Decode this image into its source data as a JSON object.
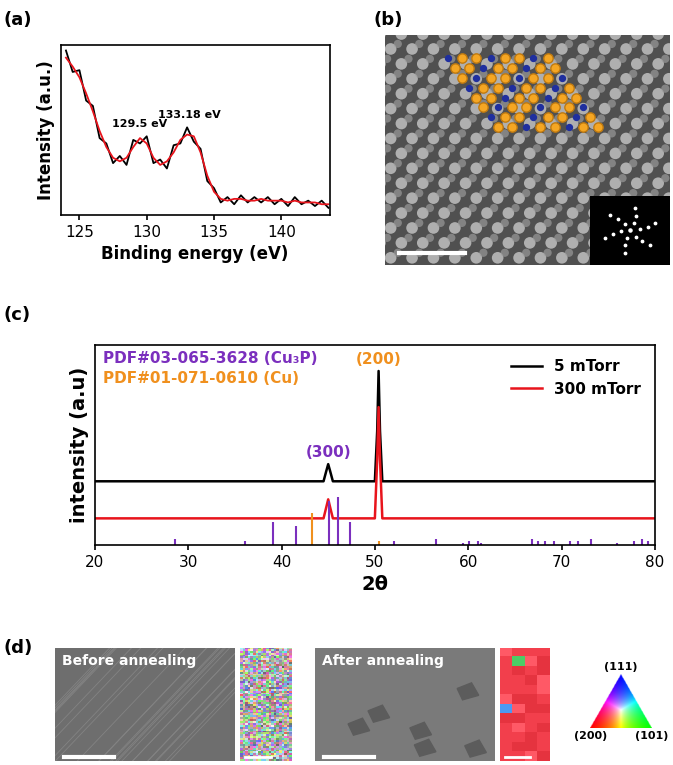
{
  "chart_data": [
    {
      "panel": "(a)",
      "type": "line",
      "x_label": "Binding energy (eV)",
      "y_label": "Intensity (a.u.)",
      "x": [
        124,
        124.5,
        125,
        125.5,
        126,
        126.5,
        127,
        127.5,
        128,
        128.5,
        129,
        129.5,
        130,
        130.5,
        131,
        131.5,
        132,
        132.5,
        133,
        133.5,
        134,
        134.5,
        135,
        135.5,
        136,
        136.5,
        137,
        137.5,
        138,
        138.5,
        139,
        139.5,
        140,
        140.5,
        141,
        141.5,
        142,
        142.5,
        143,
        143.5
      ],
      "series": [
        {
          "color": "#000000",
          "values": [
            1.02,
            0.9,
            0.91,
            0.74,
            0.71,
            0.53,
            0.5,
            0.39,
            0.43,
            0.38,
            0.52,
            0.5,
            0.54,
            0.39,
            0.41,
            0.36,
            0.49,
            0.5,
            0.59,
            0.51,
            0.47,
            0.29,
            0.25,
            0.17,
            0.2,
            0.16,
            0.21,
            0.17,
            0.2,
            0.17,
            0.2,
            0.16,
            0.19,
            0.15,
            0.2,
            0.16,
            0.18,
            0.15,
            0.18,
            0.14
          ]
        },
        {
          "color": "#e8141c",
          "values": [
            0.98,
            0.93,
            0.87,
            0.78,
            0.68,
            0.57,
            0.48,
            0.42,
            0.4,
            0.42,
            0.48,
            0.53,
            0.5,
            0.42,
            0.38,
            0.4,
            0.45,
            0.52,
            0.55,
            0.54,
            0.45,
            0.32,
            0.23,
            0.19,
            0.18,
            0.19,
            0.19,
            0.18,
            0.18,
            0.19,
            0.18,
            0.18,
            0.18,
            0.17,
            0.18,
            0.17,
            0.17,
            0.17,
            0.16,
            0.16
          ]
        }
      ],
      "xlim": [
        123.6,
        143.6
      ],
      "xticks": [
        125,
        130,
        135,
        140
      ],
      "ylim": [
        0.1,
        1.05
      ],
      "tick_labels": "x",
      "annotations": [
        {
          "text": "129.5 eV",
          "x": 129.5
        },
        {
          "text": "133.18 eV",
          "x": 133.18
        }
      ]
    },
    {
      "panel": "(c)",
      "type": "line",
      "x_label": "2θ",
      "y_label": "intensity (a.u)",
      "x": [
        20,
        44.5,
        44.8,
        45.0,
        45.2,
        45.5,
        50.0,
        50.25,
        50.4,
        50.55,
        50.8,
        80
      ],
      "series": [
        {
          "name": "5 mTorr",
          "color": "#000000",
          "values": [
            0.335,
            0.335,
            0.39,
            0.425,
            0.39,
            0.335,
            0.335,
            0.6,
            0.915,
            0.6,
            0.335,
            0.335
          ]
        },
        {
          "name": "300 mTorr",
          "color": "#e8141c",
          "values": [
            0.14,
            0.14,
            0.2,
            0.24,
            0.2,
            0.14,
            0.14,
            0.45,
            0.725,
            0.45,
            0.14,
            0.14
          ]
        }
      ],
      "reference_patterns": [
        {
          "name": "PDF#03-065-3628 (Cu₃P)",
          "color": "#7b2fbe",
          "x": [
            28.6,
            36.1,
            39.1,
            41.6,
            45.1,
            46.1,
            47.3,
            52.1,
            56.5,
            59.4,
            60.1,
            61.1,
            61.4,
            66.8,
            67.5,
            68.2,
            69.2,
            70.9,
            71.8,
            73.2,
            75.9,
            77.8,
            78.6,
            79.3
          ],
          "values": [
            0.03,
            0.02,
            0.12,
            0.1,
            0.23,
            0.25,
            0.12,
            0.02,
            0.03,
            0.01,
            0.02,
            0.02,
            0.01,
            0.03,
            0.02,
            0.02,
            0.02,
            0.02,
            0.02,
            0.03,
            0.01,
            0.02,
            0.03,
            0.02
          ]
        },
        {
          "name": "PDF#01-071-0610 (Cu)",
          "color": "#f0901e",
          "x": [
            43.3,
            50.4
          ],
          "values": [
            0.17,
            0.02
          ]
        }
      ],
      "peak_labels": [
        {
          "text": "(300)",
          "x": 45.0,
          "color": "#7b2fbe"
        },
        {
          "text": "(200)",
          "x": 50.4,
          "color": "#f0901e"
        }
      ],
      "xlim": [
        20,
        80
      ],
      "xticks": [
        20,
        30,
        40,
        50,
        60,
        70,
        80
      ],
      "ylim": [
        0,
        1.05
      ],
      "tick_labels": "x",
      "legend": "upper right"
    }
  ],
  "images": [
    {
      "panel": "(b)"
    },
    {
      "panel": "(d)",
      "texts": [
        "Before annealing",
        "After annealing"
      ],
      "orientation_key": [
        "(111)",
        "(200)",
        "(101)"
      ]
    }
  ]
}
